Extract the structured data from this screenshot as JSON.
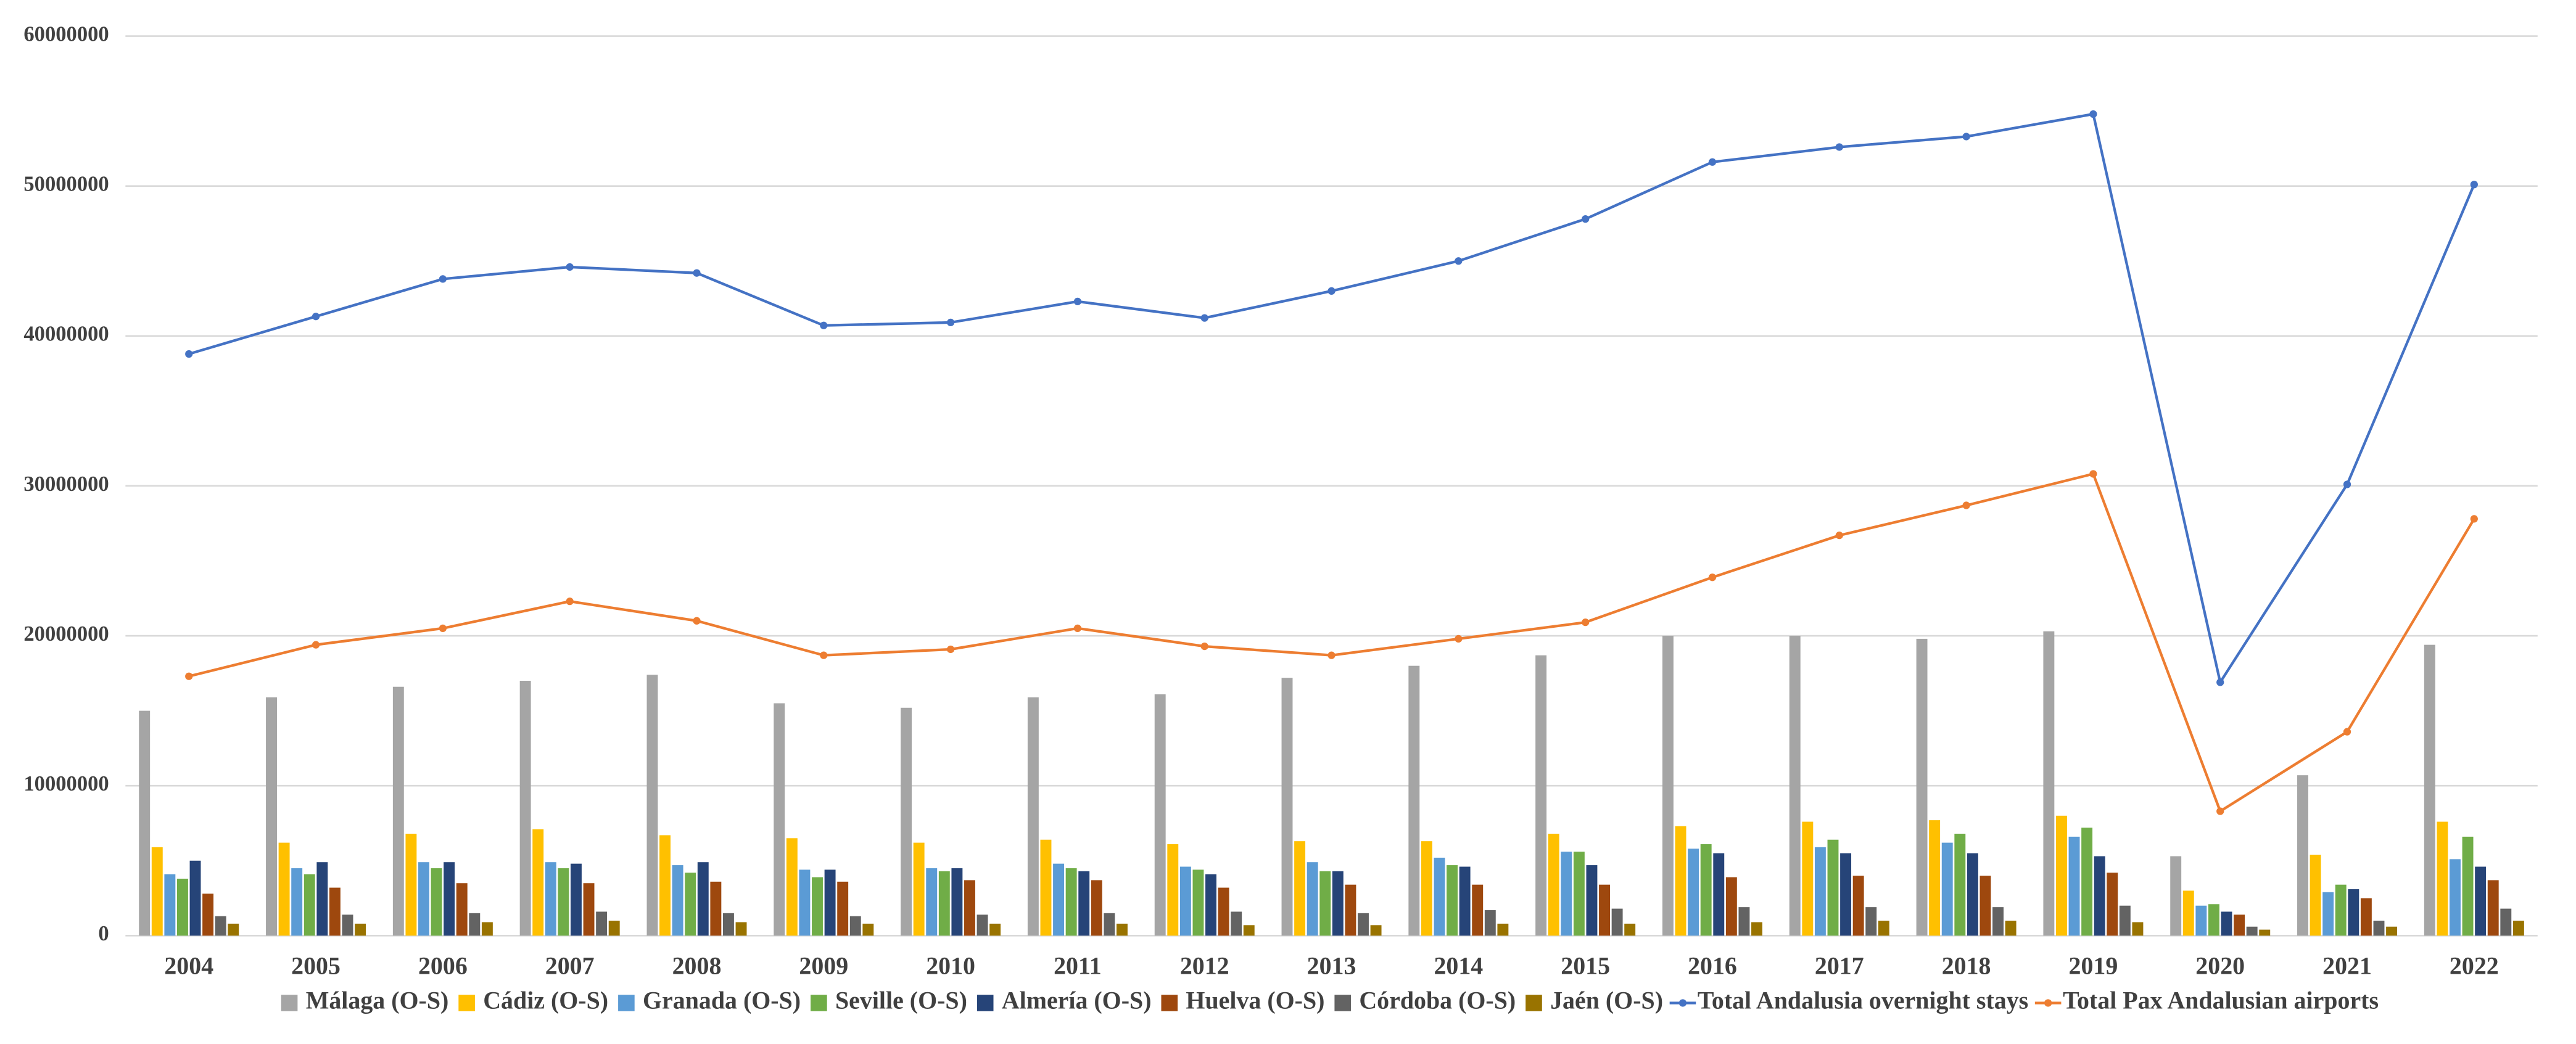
{
  "chart_data": {
    "type": "bar",
    "categories": [
      "2004",
      "2005",
      "2006",
      "2007",
      "2008",
      "2009",
      "2010",
      "2011",
      "2012",
      "2013",
      "2014",
      "2015",
      "2016",
      "2017",
      "2018",
      "2019",
      "2020",
      "2021",
      "2022"
    ],
    "ylim": [
      0,
      60000000
    ],
    "yticks": [
      0,
      10000000,
      20000000,
      30000000,
      40000000,
      50000000,
      60000000
    ],
    "grid": true,
    "legend": "bottom",
    "series": [
      {
        "name": "Málaga (O-S)",
        "type": "bar",
        "color": "#a5a5a5",
        "values": [
          15000000,
          15900000,
          16600000,
          17000000,
          17400000,
          15500000,
          15200000,
          15900000,
          16100000,
          17200000,
          18000000,
          18700000,
          20000000,
          20000000,
          19800000,
          20300000,
          5300000,
          10700000,
          19400000
        ]
      },
      {
        "name": "Cádiz (O-S)",
        "type": "bar",
        "color": "#ffc000",
        "values": [
          5900000,
          6200000,
          6800000,
          7100000,
          6700000,
          6500000,
          6200000,
          6400000,
          6100000,
          6300000,
          6300000,
          6800000,
          7300000,
          7600000,
          7700000,
          8000000,
          3000000,
          5400000,
          7600000
        ]
      },
      {
        "name": "Granada (O-S)",
        "type": "bar",
        "color": "#5b9bd5",
        "values": [
          4100000,
          4500000,
          4900000,
          4900000,
          4700000,
          4400000,
          4500000,
          4800000,
          4600000,
          4900000,
          5200000,
          5600000,
          5800000,
          5900000,
          6200000,
          6600000,
          2000000,
          2900000,
          5100000
        ]
      },
      {
        "name": "Seville (O-S)",
        "type": "bar",
        "color": "#70ad47",
        "values": [
          3800000,
          4100000,
          4500000,
          4500000,
          4200000,
          3900000,
          4300000,
          4500000,
          4400000,
          4300000,
          4700000,
          5600000,
          6100000,
          6400000,
          6800000,
          7200000,
          2100000,
          3400000,
          6600000
        ]
      },
      {
        "name": "Almería (O-S)",
        "type": "bar",
        "color": "#264478",
        "values": [
          5000000,
          4900000,
          4900000,
          4800000,
          4900000,
          4400000,
          4500000,
          4300000,
          4100000,
          4300000,
          4600000,
          4700000,
          5500000,
          5500000,
          5500000,
          5300000,
          1600000,
          3100000,
          4600000
        ]
      },
      {
        "name": "Huelva (O-S)",
        "type": "bar",
        "color": "#9e480e",
        "values": [
          2800000,
          3200000,
          3500000,
          3500000,
          3600000,
          3600000,
          3700000,
          3700000,
          3200000,
          3400000,
          3400000,
          3400000,
          3900000,
          4000000,
          4000000,
          4200000,
          1400000,
          2500000,
          3700000
        ]
      },
      {
        "name": "Córdoba (O-S)",
        "type": "bar",
        "color": "#636363",
        "values": [
          1300000,
          1400000,
          1500000,
          1600000,
          1500000,
          1300000,
          1400000,
          1500000,
          1600000,
          1500000,
          1700000,
          1800000,
          1900000,
          1900000,
          1900000,
          2000000,
          600000,
          1000000,
          1800000
        ]
      },
      {
        "name": "Jaén (O-S)",
        "type": "bar",
        "color": "#997300",
        "values": [
          800000,
          800000,
          900000,
          1000000,
          900000,
          800000,
          800000,
          800000,
          700000,
          700000,
          800000,
          800000,
          900000,
          1000000,
          1000000,
          900000,
          400000,
          600000,
          1000000
        ]
      },
      {
        "name": "Total Andalusia overnight stays",
        "type": "line",
        "color": "#4472c4",
        "values": [
          38800000,
          41300000,
          43800000,
          44600000,
          44200000,
          40700000,
          40900000,
          42300000,
          41200000,
          43000000,
          45000000,
          47800000,
          51600000,
          52600000,
          53300000,
          54800000,
          16900000,
          30100000,
          50100000
        ]
      },
      {
        "name": "Total Pax Andalusian airports",
        "type": "line",
        "color": "#ed7d31",
        "values": [
          17300000,
          19400000,
          20500000,
          22300000,
          21000000,
          18700000,
          19100000,
          20500000,
          19300000,
          18700000,
          19800000,
          20900000,
          23900000,
          26700000,
          28700000,
          30800000,
          8300000,
          13600000,
          27800000
        ]
      }
    ]
  }
}
